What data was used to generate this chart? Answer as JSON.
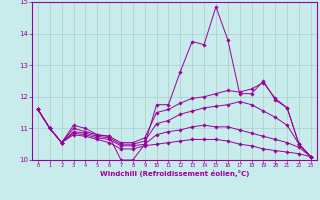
{
  "xlabel": "Windchill (Refroidissement éolien,°C)",
  "ylabel": "",
  "xlim": [
    -0.5,
    23.5
  ],
  "ylim": [
    10,
    15
  ],
  "xticks": [
    0,
    1,
    2,
    3,
    4,
    5,
    6,
    7,
    8,
    9,
    10,
    11,
    12,
    13,
    14,
    15,
    16,
    17,
    18,
    19,
    20,
    21,
    22,
    23
  ],
  "yticks": [
    10,
    11,
    12,
    13,
    14,
    15
  ],
  "bg_color": "#c8ecec",
  "line_color": "#990099",
  "grid_color": "#aacccc",
  "lines": [
    {
      "x": [
        0,
        1,
        2,
        3,
        4,
        5,
        6,
        7,
        8,
        9,
        10,
        11,
        12,
        13,
        14,
        15,
        16,
        17,
        18,
        19,
        20,
        21,
        22,
        23
      ],
      "y": [
        11.6,
        11.0,
        10.55,
        11.1,
        11.0,
        10.8,
        10.75,
        10.0,
        10.0,
        10.5,
        11.75,
        11.75,
        12.8,
        13.75,
        13.65,
        14.85,
        13.8,
        12.1,
        12.1,
        12.5,
        11.9,
        11.65,
        10.5,
        10.1
      ]
    },
    {
      "x": [
        0,
        1,
        2,
        3,
        4,
        5,
        6,
        7,
        8,
        9,
        10,
        11,
        12,
        13,
        14,
        15,
        16,
        17,
        18,
        19,
        20,
        21,
        22,
        23
      ],
      "y": [
        11.6,
        11.0,
        10.55,
        11.0,
        10.9,
        10.8,
        10.75,
        10.55,
        10.55,
        10.7,
        11.5,
        11.6,
        11.8,
        11.95,
        12.0,
        12.1,
        12.2,
        12.15,
        12.25,
        12.45,
        11.95,
        11.65,
        10.5,
        10.1
      ]
    },
    {
      "x": [
        0,
        1,
        2,
        3,
        4,
        5,
        6,
        7,
        8,
        9,
        10,
        11,
        12,
        13,
        14,
        15,
        16,
        17,
        18,
        19,
        20,
        21,
        22,
        23
      ],
      "y": [
        11.6,
        11.0,
        10.55,
        10.9,
        10.85,
        10.75,
        10.7,
        10.5,
        10.5,
        10.6,
        11.15,
        11.25,
        11.45,
        11.55,
        11.65,
        11.7,
        11.75,
        11.85,
        11.75,
        11.55,
        11.35,
        11.1,
        10.5,
        10.1
      ]
    },
    {
      "x": [
        0,
        1,
        2,
        3,
        4,
        5,
        6,
        7,
        8,
        9,
        10,
        11,
        12,
        13,
        14,
        15,
        16,
        17,
        18,
        19,
        20,
        21,
        22,
        23
      ],
      "y": [
        11.6,
        11.0,
        10.55,
        10.85,
        10.8,
        10.7,
        10.65,
        10.45,
        10.45,
        10.5,
        10.8,
        10.9,
        10.95,
        11.05,
        11.1,
        11.05,
        11.05,
        10.95,
        10.85,
        10.75,
        10.65,
        10.55,
        10.4,
        10.1
      ]
    },
    {
      "x": [
        0,
        1,
        2,
        3,
        4,
        5,
        6,
        7,
        8,
        9,
        10,
        11,
        12,
        13,
        14,
        15,
        16,
        17,
        18,
        19,
        20,
        21,
        22,
        23
      ],
      "y": [
        11.6,
        11.0,
        10.55,
        10.8,
        10.75,
        10.65,
        10.55,
        10.35,
        10.35,
        10.45,
        10.5,
        10.55,
        10.6,
        10.65,
        10.65,
        10.65,
        10.6,
        10.5,
        10.45,
        10.35,
        10.3,
        10.25,
        10.2,
        10.1
      ]
    }
  ]
}
